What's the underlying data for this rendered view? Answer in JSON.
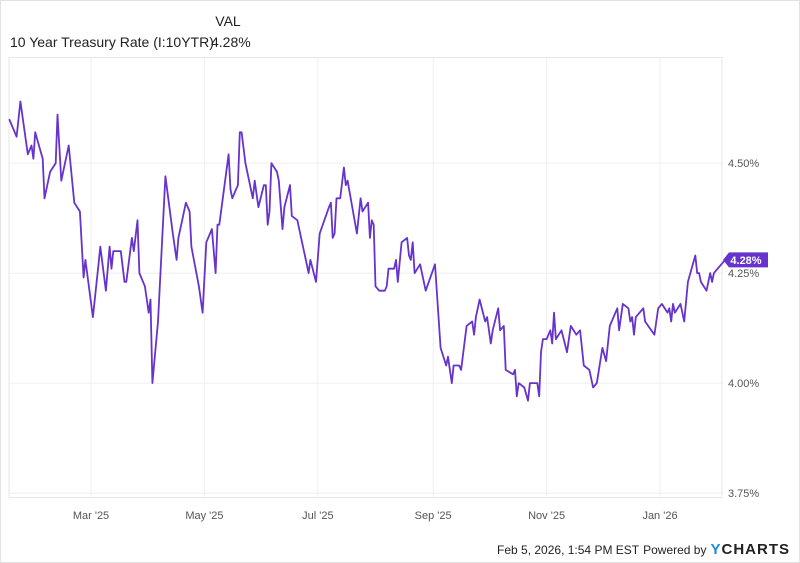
{
  "legend": {
    "column_header": "VAL",
    "series_name": "10 Year Treasury Rate (I:10YTR)",
    "series_value": "4.28%"
  },
  "footer": {
    "timestamp": "Feb 5, 2026, 1:54 PM EST",
    "powered_by": "Powered by",
    "logo_y": "Y",
    "logo_rest": "CHARTS"
  },
  "colors": {
    "series": "#6633cc",
    "grid": "#efefef",
    "axis_text": "#555555"
  },
  "chart_data": {
    "type": "line",
    "title": "",
    "xlabel": "",
    "ylabel": "",
    "x_unit": "days since 2025-01-01",
    "xlim": [
      15,
      400
    ],
    "ylim": [
      3.74,
      4.74
    ],
    "grid": true,
    "y_axis_position": "right",
    "y_ticks": [
      {
        "value": 4.5,
        "label": "4.50%"
      },
      {
        "value": 4.25,
        "label": "4.25%"
      },
      {
        "value": 4.0,
        "label": "4.00%"
      },
      {
        "value": 3.75,
        "label": "3.75%"
      }
    ],
    "x_ticks": [
      {
        "value": 59,
        "label": "Mar '25"
      },
      {
        "value": 120,
        "label": "May '25"
      },
      {
        "value": 181,
        "label": "Jul '25"
      },
      {
        "value": 243,
        "label": "Sep '25"
      },
      {
        "value": 304,
        "label": "Nov '25"
      },
      {
        "value": 365,
        "label": "Jan '26"
      }
    ],
    "last_value_label": "4.28%",
    "series": [
      {
        "name": "10 Year Treasury Rate (I:10YTR)",
        "x": [
          15,
          19,
          21,
          25,
          27,
          28,
          29,
          33,
          34,
          37,
          40,
          41,
          43,
          47,
          50,
          53,
          55,
          56,
          60,
          63,
          64,
          67,
          69,
          70,
          71,
          75,
          77,
          78,
          81,
          82,
          84,
          85,
          88,
          90,
          91,
          92,
          95,
          99,
          103,
          105,
          106,
          110,
          112,
          113,
          117,
          119,
          121,
          124,
          126,
          127,
          128,
          133,
          134,
          135,
          138,
          139,
          140,
          142,
          146,
          147,
          149,
          152,
          153,
          154,
          155,
          156,
          159,
          160,
          162,
          163,
          166,
          167,
          170,
          172,
          174,
          176,
          177,
          180,
          182,
          187,
          188,
          189,
          190,
          191,
          193,
          195,
          196,
          197,
          202,
          204,
          205,
          208,
          209,
          210,
          211,
          212,
          214,
          217,
          218,
          219,
          222,
          223,
          224,
          226,
          229,
          230,
          231,
          232,
          233,
          236,
          239,
          244,
          247,
          250,
          251,
          253,
          254,
          257,
          258,
          261,
          264,
          265,
          266,
          268,
          271,
          272,
          274,
          275,
          278,
          279,
          281,
          282,
          286,
          287,
          288,
          289,
          292,
          294,
          295,
          296,
          299,
          300,
          301,
          302,
          304,
          306,
          307,
          308,
          309,
          312,
          315,
          317,
          320,
          322,
          324,
          327,
          329,
          331,
          334,
          336,
          338,
          342,
          343,
          345,
          348,
          349,
          350,
          351,
          352,
          356,
          357,
          362,
          364,
          366,
          369,
          370,
          371,
          372,
          373,
          376,
          378,
          380,
          384,
          385,
          386,
          387,
          390,
          392,
          393,
          394,
          400
        ],
        "values": [
          4.6,
          4.56,
          4.64,
          4.52,
          4.54,
          4.51,
          4.57,
          4.51,
          4.42,
          4.48,
          4.5,
          4.61,
          4.46,
          4.54,
          4.41,
          4.39,
          4.24,
          4.28,
          4.15,
          4.27,
          4.31,
          4.21,
          4.31,
          4.26,
          4.3,
          4.3,
          4.23,
          4.23,
          4.33,
          4.3,
          4.37,
          4.25,
          4.22,
          4.16,
          4.19,
          4.0,
          4.14,
          4.47,
          4.34,
          4.28,
          4.33,
          4.41,
          4.39,
          4.31,
          4.22,
          4.16,
          4.32,
          4.35,
          4.25,
          4.36,
          4.36,
          4.52,
          4.44,
          4.42,
          4.45,
          4.57,
          4.57,
          4.5,
          4.42,
          4.46,
          4.4,
          4.45,
          4.45,
          4.36,
          4.39,
          4.5,
          4.48,
          4.46,
          4.35,
          4.4,
          4.45,
          4.38,
          4.37,
          4.33,
          4.29,
          4.25,
          4.28,
          4.23,
          4.34,
          4.4,
          4.41,
          4.33,
          4.34,
          4.42,
          4.42,
          4.49,
          4.45,
          4.46,
          4.34,
          4.42,
          4.39,
          4.41,
          4.33,
          4.37,
          4.36,
          4.22,
          4.21,
          4.21,
          4.22,
          4.26,
          4.26,
          4.28,
          4.23,
          4.32,
          4.33,
          4.29,
          4.28,
          4.32,
          4.25,
          4.27,
          4.21,
          4.27,
          4.08,
          4.04,
          4.06,
          4.0,
          4.04,
          4.04,
          4.03,
          4.13,
          4.14,
          4.11,
          4.15,
          4.19,
          4.14,
          4.15,
          4.09,
          4.12,
          4.17,
          4.12,
          4.13,
          4.03,
          4.02,
          4.03,
          3.97,
          4.0,
          3.99,
          3.96,
          4.0,
          4.0,
          4.0,
          3.97,
          4.07,
          4.1,
          4.1,
          4.12,
          4.09,
          4.16,
          4.1,
          4.12,
          4.07,
          4.13,
          4.11,
          4.12,
          4.04,
          4.03,
          3.99,
          4.0,
          4.08,
          4.05,
          4.13,
          4.17,
          4.12,
          4.18,
          4.17,
          4.14,
          4.15,
          4.11,
          4.15,
          4.17,
          4.14,
          4.11,
          4.17,
          4.18,
          4.16,
          4.17,
          4.14,
          4.18,
          4.16,
          4.18,
          4.14,
          4.23,
          4.29,
          4.25,
          4.25,
          4.23,
          4.21,
          4.25,
          4.23,
          4.25,
          4.28
        ]
      }
    ]
  }
}
